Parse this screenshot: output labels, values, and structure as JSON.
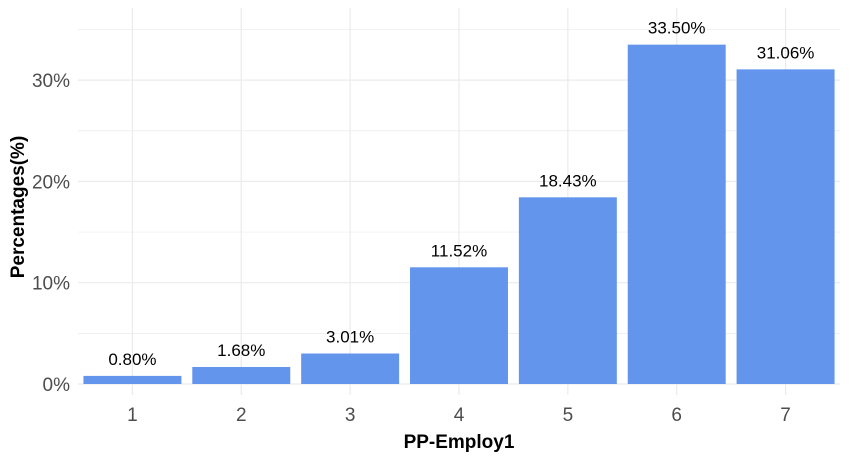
{
  "chart_data": {
    "type": "bar",
    "title": "",
    "xlabel": "PP-Employ1",
    "ylabel": "Percentages(%)",
    "categories": [
      "1",
      "2",
      "3",
      "4",
      "5",
      "6",
      "7"
    ],
    "values": [
      0.8,
      1.68,
      3.01,
      11.52,
      18.43,
      33.5,
      31.06
    ],
    "data_labels": [
      "0.80%",
      "1.68%",
      "3.01%",
      "11.52%",
      "18.43%",
      "33.50%",
      "31.06%"
    ],
    "y_ticks": [
      0,
      10,
      20,
      30
    ],
    "y_tick_labels": [
      "0%",
      "10%",
      "20%",
      "30%"
    ],
    "ylim": [
      0,
      35
    ],
    "grid": true,
    "legend": "none",
    "colors": {
      "bar": "#6495ED",
      "grid": "#ebebeb",
      "tick_text": "#4d4d4d"
    }
  }
}
